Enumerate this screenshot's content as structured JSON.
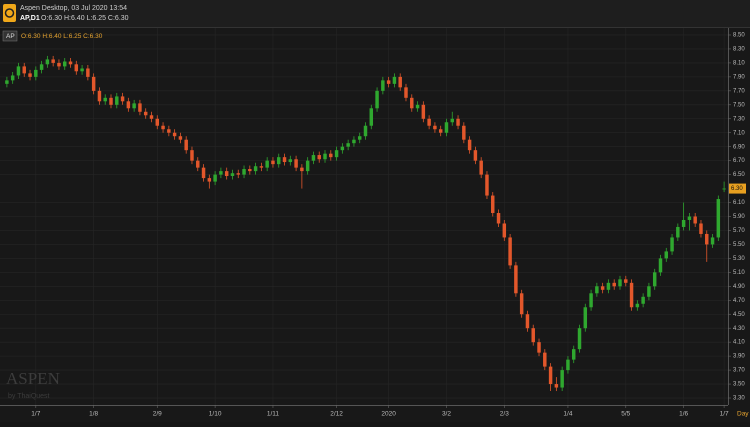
{
  "header": {
    "title": "Aspen Desktop, 03 Jul 2020 13:54",
    "symbol": "AP,D1",
    "ohlc": "O:6.30 H:6.40 L:6.25 C:6.30"
  },
  "chart_data": {
    "type": "candlestick",
    "legend": {
      "symbol": "AP",
      "ohlc": "O:6.30 H:6.40 L:6.25 C:6.30"
    },
    "watermark": {
      "brand": "ASPEN",
      "by": "by ThaiQuest"
    },
    "xlabel": "Day",
    "up_color": "#2fa82f",
    "down_color": "#e3572b",
    "grid": true,
    "ylim": [
      3.2,
      8.6
    ],
    "yticks": [
      {
        "value": 8.5,
        "label": "8.50"
      },
      {
        "value": 8.3,
        "label": "8.30"
      },
      {
        "value": 8.1,
        "label": "8.10"
      },
      {
        "value": 7.9,
        "label": "7.90"
      },
      {
        "value": 7.7,
        "label": "7.70"
      },
      {
        "value": 7.5,
        "label": "7.50"
      },
      {
        "value": 7.3,
        "label": "7.30"
      },
      {
        "value": 7.1,
        "label": "7.10"
      },
      {
        "value": 6.9,
        "label": "6.90"
      },
      {
        "value": 6.7,
        "label": "6.70"
      },
      {
        "value": 6.5,
        "label": "6.50"
      },
      {
        "value": 6.1,
        "label": "6.10"
      },
      {
        "value": 5.9,
        "label": "5.90"
      },
      {
        "value": 5.7,
        "label": "5.70"
      },
      {
        "value": 5.5,
        "label": "5.50"
      },
      {
        "value": 5.3,
        "label": "5.30"
      },
      {
        "value": 5.1,
        "label": "5.10"
      },
      {
        "value": 4.9,
        "label": "4.90"
      },
      {
        "value": 4.7,
        "label": "4.70"
      },
      {
        "value": 4.5,
        "label": "4.50"
      },
      {
        "value": 4.3,
        "label": "4.30"
      },
      {
        "value": 4.1,
        "label": "4.10"
      },
      {
        "value": 3.9,
        "label": "3.90"
      },
      {
        "value": 3.7,
        "label": "3.70"
      },
      {
        "value": 3.5,
        "label": "3.50"
      },
      {
        "value": 3.3,
        "label": "3.30"
      }
    ],
    "last_price": {
      "value": 6.3,
      "label": "6.30"
    },
    "categories": [
      null,
      null,
      null,
      null,
      null,
      "1/7",
      null,
      null,
      null,
      null,
      null,
      null,
      null,
      null,
      null,
      "1/8",
      null,
      null,
      null,
      null,
      null,
      null,
      null,
      null,
      null,
      null,
      "2/9",
      null,
      null,
      null,
      null,
      null,
      null,
      null,
      null,
      null,
      "1/10",
      null,
      null,
      null,
      null,
      null,
      null,
      null,
      null,
      null,
      "1/11",
      null,
      null,
      null,
      null,
      null,
      null,
      null,
      null,
      null,
      null,
      "2/12",
      null,
      null,
      null,
      null,
      null,
      null,
      null,
      null,
      "2020",
      null,
      null,
      null,
      null,
      null,
      null,
      null,
      null,
      null,
      "3/2",
      null,
      null,
      null,
      null,
      null,
      null,
      null,
      null,
      null,
      "2/3",
      null,
      null,
      null,
      null,
      null,
      null,
      null,
      null,
      null,
      null,
      "1/4",
      null,
      null,
      null,
      null,
      null,
      null,
      null,
      null,
      null,
      "5/5",
      null,
      null,
      null,
      null,
      null,
      null,
      null,
      null,
      null,
      "1/6",
      null,
      null,
      null,
      null,
      null,
      null,
      "1/7"
    ],
    "candles": [
      [
        7.8,
        7.9,
        7.75,
        7.85
      ],
      [
        7.85,
        7.97,
        7.8,
        7.92
      ],
      [
        7.92,
        8.1,
        7.87,
        8.05
      ],
      [
        8.05,
        8.1,
        7.9,
        7.95
      ],
      [
        7.95,
        8.0,
        7.85,
        7.9
      ],
      [
        7.9,
        8.05,
        7.85,
        8.0
      ],
      [
        8.0,
        8.13,
        7.95,
        8.08
      ],
      [
        8.08,
        8.2,
        8.03,
        8.15
      ],
      [
        8.15,
        8.2,
        8.05,
        8.1
      ],
      [
        8.1,
        8.15,
        8.0,
        8.05
      ],
      [
        8.05,
        8.17,
        8.0,
        8.12
      ],
      [
        8.12,
        8.17,
        8.03,
        8.08
      ],
      [
        8.08,
        8.13,
        7.93,
        7.98
      ],
      [
        7.98,
        8.07,
        7.93,
        8.02
      ],
      [
        8.02,
        8.07,
        7.85,
        7.9
      ],
      [
        7.9,
        7.95,
        7.65,
        7.7
      ],
      [
        7.7,
        7.75,
        7.5,
        7.55
      ],
      [
        7.55,
        7.65,
        7.5,
        7.6
      ],
      [
        7.6,
        7.65,
        7.45,
        7.5
      ],
      [
        7.5,
        7.67,
        7.45,
        7.62
      ],
      [
        7.62,
        7.67,
        7.5,
        7.55
      ],
      [
        7.55,
        7.6,
        7.4,
        7.45
      ],
      [
        7.45,
        7.57,
        7.4,
        7.52
      ],
      [
        7.52,
        7.57,
        7.35,
        7.4
      ],
      [
        7.4,
        7.45,
        7.3,
        7.35
      ],
      [
        7.35,
        7.4,
        7.25,
        7.3
      ],
      [
        7.3,
        7.35,
        7.15,
        7.2
      ],
      [
        7.2,
        7.25,
        7.1,
        7.15
      ],
      [
        7.15,
        7.2,
        7.05,
        7.1
      ],
      [
        7.1,
        7.15,
        7.0,
        7.05
      ],
      [
        7.05,
        7.1,
        6.95,
        7.0
      ],
      [
        7.0,
        7.05,
        6.8,
        6.85
      ],
      [
        6.85,
        6.9,
        6.65,
        6.7
      ],
      [
        6.7,
        6.75,
        6.55,
        6.6
      ],
      [
        6.6,
        6.65,
        6.4,
        6.45
      ],
      [
        6.45,
        6.5,
        6.3,
        6.4
      ],
      [
        6.4,
        6.55,
        6.35,
        6.5
      ],
      [
        6.5,
        6.6,
        6.45,
        6.55
      ],
      [
        6.55,
        6.6,
        6.43,
        6.48
      ],
      [
        6.48,
        6.57,
        6.43,
        6.52
      ],
      [
        6.52,
        6.57,
        6.45,
        6.5
      ],
      [
        6.5,
        6.63,
        6.45,
        6.58
      ],
      [
        6.58,
        6.63,
        6.5,
        6.55
      ],
      [
        6.55,
        6.67,
        6.5,
        6.62
      ],
      [
        6.62,
        6.67,
        6.55,
        6.6
      ],
      [
        6.6,
        6.75,
        6.55,
        6.7
      ],
      [
        6.7,
        6.75,
        6.6,
        6.65
      ],
      [
        6.65,
        6.8,
        6.6,
        6.75
      ],
      [
        6.75,
        6.8,
        6.63,
        6.68
      ],
      [
        6.68,
        6.77,
        6.63,
        6.72
      ],
      [
        6.72,
        6.77,
        6.55,
        6.6
      ],
      [
        6.6,
        6.65,
        6.3,
        6.55
      ],
      [
        6.55,
        6.75,
        6.5,
        6.7
      ],
      [
        6.7,
        6.83,
        6.65,
        6.78
      ],
      [
        6.78,
        6.83,
        6.67,
        6.72
      ],
      [
        6.72,
        6.85,
        6.67,
        6.8
      ],
      [
        6.8,
        6.85,
        6.7,
        6.75
      ],
      [
        6.75,
        6.9,
        6.7,
        6.85
      ],
      [
        6.85,
        6.95,
        6.8,
        6.9
      ],
      [
        6.9,
        7.0,
        6.85,
        6.95
      ],
      [
        6.95,
        7.05,
        6.9,
        7.0
      ],
      [
        7.0,
        7.1,
        6.95,
        7.05
      ],
      [
        7.05,
        7.25,
        7.0,
        7.2
      ],
      [
        7.2,
        7.5,
        7.15,
        7.45
      ],
      [
        7.45,
        7.75,
        7.4,
        7.7
      ],
      [
        7.7,
        7.9,
        7.65,
        7.85
      ],
      [
        7.85,
        7.9,
        7.75,
        7.8
      ],
      [
        7.8,
        7.95,
        7.75,
        7.9
      ],
      [
        7.9,
        7.95,
        7.7,
        7.75
      ],
      [
        7.75,
        7.8,
        7.55,
        7.6
      ],
      [
        7.6,
        7.65,
        7.4,
        7.45
      ],
      [
        7.45,
        7.55,
        7.4,
        7.5
      ],
      [
        7.5,
        7.55,
        7.25,
        7.3
      ],
      [
        7.3,
        7.35,
        7.15,
        7.2
      ],
      [
        7.2,
        7.25,
        7.1,
        7.15
      ],
      [
        7.15,
        7.2,
        7.05,
        7.1
      ],
      [
        7.1,
        7.3,
        7.05,
        7.25
      ],
      [
        7.25,
        7.4,
        7.2,
        7.3
      ],
      [
        7.3,
        7.35,
        7.15,
        7.2
      ],
      [
        7.2,
        7.25,
        6.95,
        7.0
      ],
      [
        7.0,
        7.05,
        6.8,
        6.85
      ],
      [
        6.85,
        6.9,
        6.65,
        6.7
      ],
      [
        6.7,
        6.75,
        6.45,
        6.5
      ],
      [
        6.5,
        6.55,
        6.15,
        6.2
      ],
      [
        6.2,
        6.25,
        5.9,
        5.95
      ],
      [
        5.95,
        6.0,
        5.75,
        5.8
      ],
      [
        5.8,
        5.85,
        5.55,
        5.6
      ],
      [
        5.6,
        5.65,
        5.15,
        5.2
      ],
      [
        5.2,
        5.25,
        4.75,
        4.8
      ],
      [
        4.8,
        4.85,
        4.45,
        4.5
      ],
      [
        4.5,
        4.55,
        4.25,
        4.3
      ],
      [
        4.3,
        4.35,
        4.05,
        4.1
      ],
      [
        4.1,
        4.15,
        3.9,
        3.95
      ],
      [
        3.95,
        4.0,
        3.7,
        3.75
      ],
      [
        3.75,
        3.8,
        3.4,
        3.5
      ],
      [
        3.5,
        3.6,
        3.4,
        3.45
      ],
      [
        3.45,
        3.75,
        3.4,
        3.7
      ],
      [
        3.7,
        3.9,
        3.65,
        3.85
      ],
      [
        3.85,
        4.05,
        3.8,
        4.0
      ],
      [
        4.0,
        4.35,
        3.95,
        4.3
      ],
      [
        4.3,
        4.65,
        4.25,
        4.6
      ],
      [
        4.6,
        4.85,
        4.55,
        4.8
      ],
      [
        4.8,
        4.95,
        4.75,
        4.9
      ],
      [
        4.9,
        4.95,
        4.8,
        4.85
      ],
      [
        4.85,
        5.0,
        4.8,
        4.95
      ],
      [
        4.95,
        5.0,
        4.85,
        4.9
      ],
      [
        4.9,
        5.05,
        4.85,
        5.0
      ],
      [
        5.0,
        5.05,
        4.9,
        4.95
      ],
      [
        4.95,
        5.0,
        4.55,
        4.6
      ],
      [
        4.6,
        4.7,
        4.55,
        4.65
      ],
      [
        4.65,
        4.8,
        4.6,
        4.75
      ],
      [
        4.75,
        4.95,
        4.7,
        4.9
      ],
      [
        4.9,
        5.15,
        4.85,
        5.1
      ],
      [
        5.1,
        5.35,
        5.05,
        5.3
      ],
      [
        5.3,
        5.45,
        5.25,
        5.4
      ],
      [
        5.4,
        5.65,
        5.35,
        5.6
      ],
      [
        5.6,
        5.8,
        5.55,
        5.75
      ],
      [
        5.75,
        6.1,
        5.7,
        5.85
      ],
      [
        5.85,
        5.95,
        5.7,
        5.9
      ],
      [
        5.9,
        5.95,
        5.75,
        5.8
      ],
      [
        5.8,
        5.85,
        5.6,
        5.65
      ],
      [
        5.65,
        5.7,
        5.25,
        5.5
      ],
      [
        5.5,
        5.65,
        5.45,
        5.6
      ],
      [
        5.6,
        6.2,
        5.55,
        6.15
      ],
      [
        6.3,
        6.4,
        6.25,
        6.3
      ]
    ]
  }
}
